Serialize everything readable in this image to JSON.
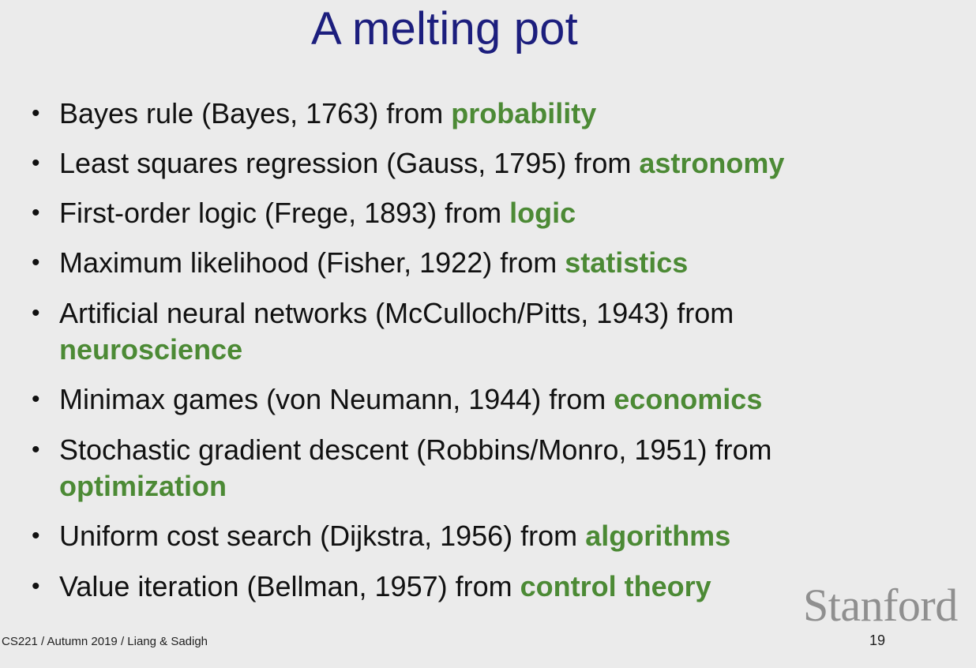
{
  "slide": {
    "title": "A melting pot",
    "bullet_symbol": "•",
    "items": [
      {
        "text": "Bayes rule (Bayes, 1763) from ",
        "field": "probability"
      },
      {
        "text": "Least squares regression (Gauss, 1795) from ",
        "field": "astronomy"
      },
      {
        "text": "First-order logic (Frege, 1893) from ",
        "field": "logic"
      },
      {
        "text": "Maximum likelihood (Fisher, 1922) from ",
        "field": "statistics"
      },
      {
        "text": "Artificial neural networks (McCulloch/Pitts, 1943) from ",
        "field": "neuroscience"
      },
      {
        "text": "Minimax games (von Neumann, 1944) from ",
        "field": "economics"
      },
      {
        "text": "Stochastic gradient descent (Robbins/Monro, 1951) from ",
        "field": "optimization"
      },
      {
        "text": "Uniform cost search (Dijkstra, 1956) from ",
        "field": "algorithms"
      },
      {
        "text": "Value iteration (Bellman, 1957) from ",
        "field": "control theory"
      }
    ],
    "footer": "CS221 / Autumn 2019 / Liang & Sadigh",
    "page_number": "19",
    "logo_text": "Stanford"
  },
  "colors": {
    "background": "#ebebeb",
    "title": "#1c1e7d",
    "body_text": "#111111",
    "field_highlight": "#4c8a35",
    "logo": "#8f8f8f"
  }
}
